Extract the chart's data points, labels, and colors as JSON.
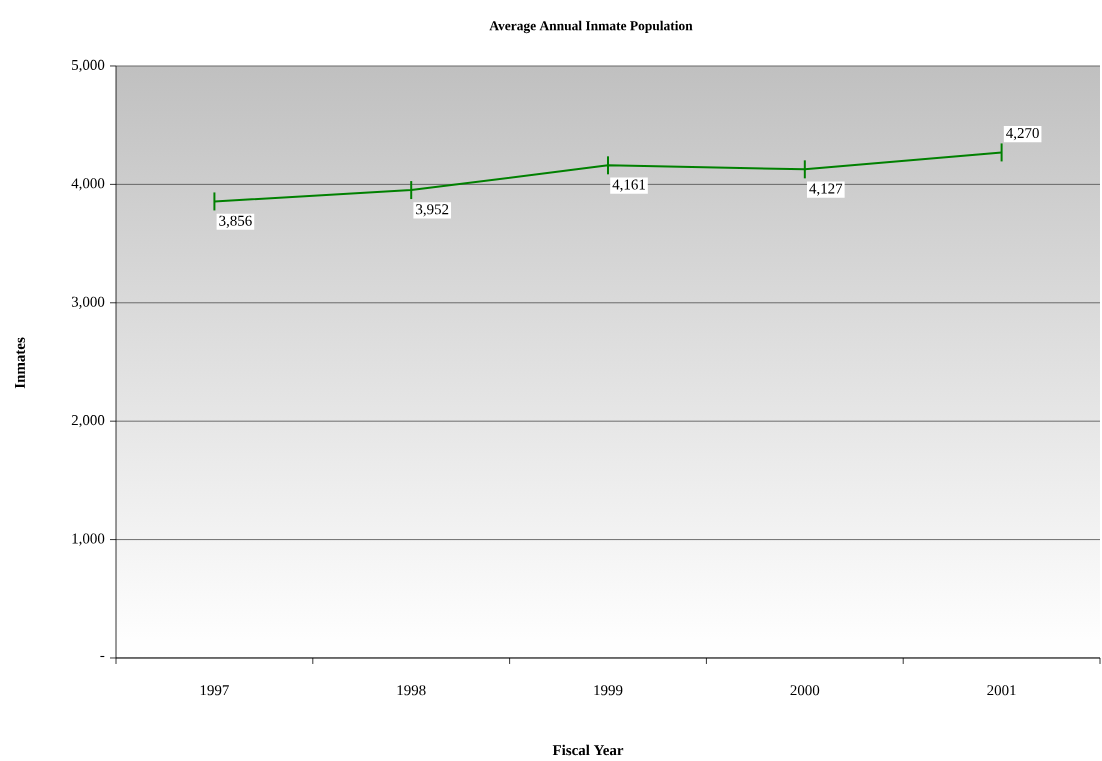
{
  "chart_data": {
    "type": "line",
    "title": "Average Annual Inmate Population",
    "xlabel": "Fiscal Year",
    "ylabel": "Inmates",
    "categories": [
      "1997",
      "1998",
      "1999",
      "2000",
      "2001"
    ],
    "series": [
      {
        "color": "#008000",
        "values": [
          3856,
          3952,
          4161,
          4127,
          4270
        ],
        "value_labels": [
          "3,856",
          "3,952",
          "4,161",
          "4,127",
          "4,270"
        ]
      }
    ],
    "ylim": [
      0,
      5000
    ],
    "yticks": [
      {
        "value": 0,
        "label": "-"
      },
      {
        "value": 1000,
        "label": "1,000"
      },
      {
        "value": 2000,
        "label": "2,000"
      },
      {
        "value": 3000,
        "label": "3,000"
      },
      {
        "value": 4000,
        "label": "4,000"
      },
      {
        "value": 5000,
        "label": "5,000"
      }
    ],
    "grid": "y"
  }
}
